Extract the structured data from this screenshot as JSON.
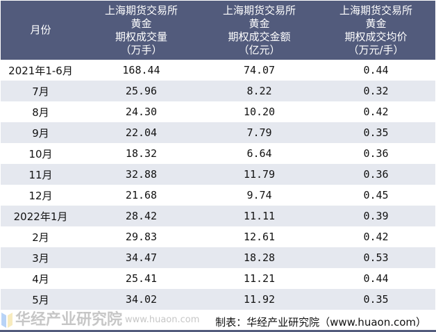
{
  "chart_data": {
    "type": "table",
    "columns": [
      {
        "lines": [
          "月份"
        ]
      },
      {
        "lines": [
          "上海期货交易所",
          "黄金",
          "期权成交量",
          "（万手）"
        ]
      },
      {
        "lines": [
          "上海期货交易所",
          "黄金",
          "期权成交金额",
          "（亿元）"
        ]
      },
      {
        "lines": [
          "上海期货交易所",
          "黄金",
          "期权成交均价",
          "（万元/手）"
        ]
      }
    ],
    "rows": [
      [
        "2021年1-6月",
        "168.44",
        "74.07",
        "0.44"
      ],
      [
        "7月",
        "25.96",
        "8.22",
        "0.32"
      ],
      [
        "8月",
        "24.30",
        "10.20",
        "0.42"
      ],
      [
        "9月",
        "22.04",
        "7.79",
        "0.35"
      ],
      [
        "10月",
        "18.32",
        "6.64",
        "0.36"
      ],
      [
        "11月",
        "32.88",
        "11.79",
        "0.36"
      ],
      [
        "12月",
        "21.68",
        "9.74",
        "0.45"
      ],
      [
        "2022年1月",
        "28.42",
        "11.11",
        "0.39"
      ],
      [
        "2月",
        "29.83",
        "12.61",
        "0.42"
      ],
      [
        "3月",
        "34.47",
        "18.28",
        "0.53"
      ],
      [
        "4月",
        "25.41",
        "11.21",
        "0.44"
      ],
      [
        "5月",
        "34.02",
        "11.92",
        "0.35"
      ]
    ],
    "source": "制表：华经产业研究院（www.huaon.com）",
    "header_color": "#525b7c",
    "stripe_color": "#e5e8ef"
  },
  "watermark": {
    "name": "华经产业研究院",
    "url": "www.huaon.com"
  }
}
